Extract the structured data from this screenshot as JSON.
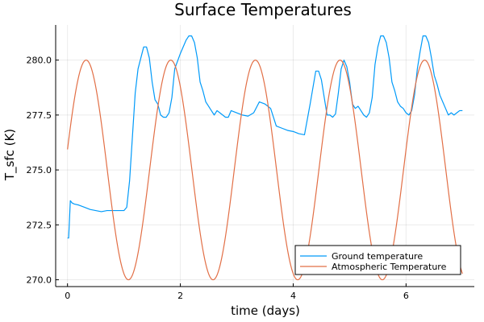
{
  "chart_data": {
    "type": "line",
    "title": "Surface Temperatures",
    "xlabel": "time (days)",
    "ylabel": "T_sfc (K)",
    "xlim": [
      -0.21,
      7.21
    ],
    "ylim": [
      269.69,
      281.6
    ],
    "xticks": [
      0,
      2,
      4,
      6
    ],
    "yticks": [
      270.0,
      272.5,
      275.0,
      277.5,
      280.0
    ],
    "ytick_labels": [
      "270.0",
      "272.5",
      "275.0",
      "277.5",
      "280.0"
    ],
    "grid": true,
    "legend_position": "bottom-right",
    "series": [
      {
        "name": "Ground temperature",
        "color": "#009af9",
        "x": [
          0.0,
          0.02,
          0.05,
          0.08,
          0.12,
          0.2,
          0.3,
          0.4,
          0.5,
          0.6,
          0.7,
          0.8,
          0.9,
          1.0,
          1.05,
          1.1,
          1.15,
          1.2,
          1.25,
          1.3,
          1.35,
          1.4,
          1.45,
          1.5,
          1.55,
          1.6,
          1.65,
          1.7,
          1.75,
          1.8,
          1.85,
          1.9,
          2.0,
          2.1,
          2.15,
          2.2,
          2.25,
          2.3,
          2.35,
          2.4,
          2.45,
          2.5,
          2.55,
          2.6,
          2.65,
          2.7,
          2.75,
          2.8,
          2.85,
          2.9,
          3.0,
          3.1,
          3.2,
          3.3,
          3.4,
          3.5,
          3.6,
          3.7,
          3.8,
          3.9,
          4.0,
          4.1,
          4.2,
          4.3,
          4.4,
          4.45,
          4.5,
          4.55,
          4.6,
          4.65,
          4.7,
          4.75,
          4.8,
          4.85,
          4.9,
          4.95,
          5.0,
          5.05,
          5.1,
          5.15,
          5.2,
          5.25,
          5.3,
          5.35,
          5.4,
          5.45,
          5.5,
          5.55,
          5.6,
          5.65,
          5.7,
          5.75,
          5.8,
          5.85,
          5.9,
          5.95,
          6.0,
          6.05,
          6.1,
          6.15,
          6.2,
          6.25,
          6.3,
          6.35,
          6.4,
          6.45,
          6.5,
          6.55,
          6.6,
          6.65,
          6.7,
          6.75,
          6.8,
          6.85,
          6.9,
          6.95,
          7.0
        ],
        "values": [
          271.9,
          271.9,
          273.6,
          273.5,
          273.45,
          273.4,
          273.3,
          273.2,
          273.15,
          273.1,
          273.15,
          273.15,
          273.15,
          273.15,
          273.3,
          274.5,
          276.5,
          278.5,
          279.6,
          280.1,
          280.6,
          280.6,
          280.1,
          279.0,
          278.2,
          278.0,
          277.5,
          277.4,
          277.4,
          277.6,
          278.3,
          279.6,
          280.3,
          280.9,
          281.1,
          281.1,
          280.8,
          280.1,
          279.0,
          278.6,
          278.1,
          277.9,
          277.7,
          277.5,
          277.7,
          277.6,
          277.5,
          277.4,
          277.4,
          277.7,
          277.6,
          277.5,
          277.45,
          277.6,
          278.1,
          278.0,
          277.8,
          277.0,
          276.9,
          276.8,
          276.75,
          276.65,
          276.6,
          278.0,
          279.5,
          279.5,
          279.1,
          278.3,
          277.5,
          277.5,
          277.4,
          277.55,
          278.5,
          279.6,
          280.0,
          279.7,
          279.0,
          278.0,
          277.8,
          277.9,
          277.7,
          277.5,
          277.4,
          277.6,
          278.3,
          279.8,
          280.6,
          281.1,
          281.1,
          280.8,
          280.1,
          279.0,
          278.6,
          278.1,
          277.9,
          277.8,
          277.6,
          277.5,
          277.7,
          278.4,
          279.6,
          280.4,
          281.1,
          281.1,
          280.8,
          280.1,
          279.3,
          278.9,
          278.4,
          278.1,
          277.8,
          277.5,
          277.6,
          277.5,
          277.6,
          277.7,
          277.7
        ]
      },
      {
        "name": "Atmospheric Temperature",
        "color": "#e26f46",
        "mean": 275.0,
        "amplitude": 5.0,
        "period_days": 1.5,
        "phase_peak_day": 0.33,
        "x_range": [
          0.0,
          7.0
        ]
      }
    ]
  }
}
